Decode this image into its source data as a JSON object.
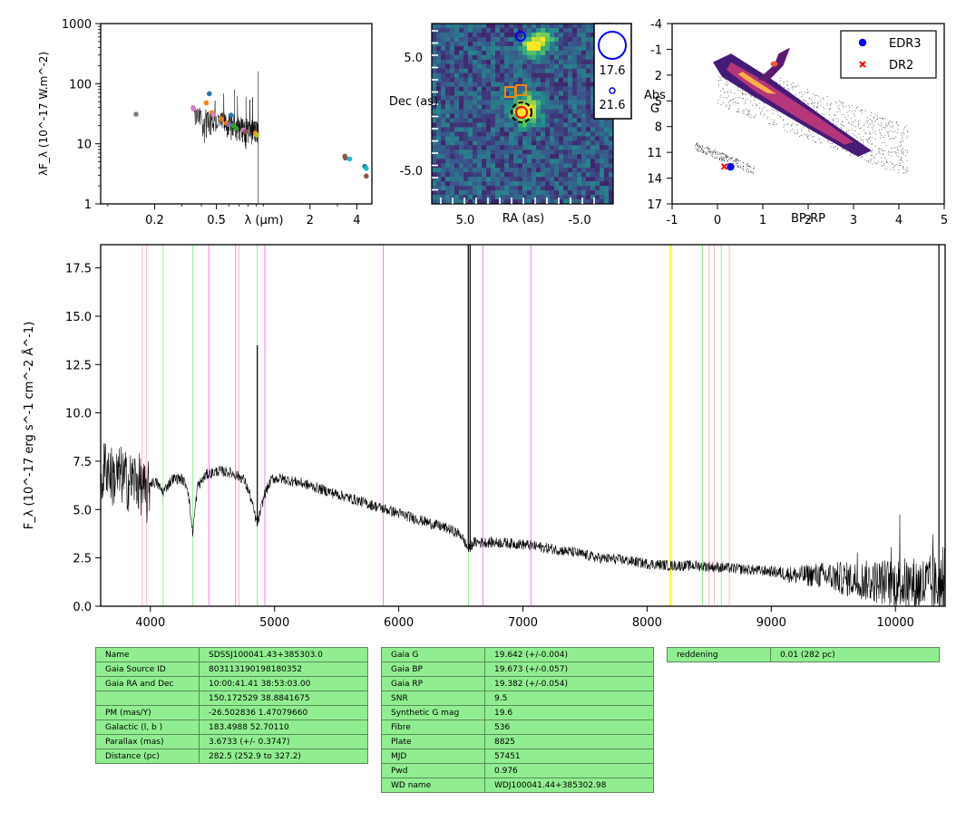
{
  "chart_data": [
    {
      "type": "scatter",
      "ylabel": "λF_λ (10^-17 W.m^-2)",
      "xlabel": "λ (μm)",
      "xscale": "log",
      "yscale": "log",
      "xlim": [
        0.09,
        5.0
      ],
      "ylim": [
        1,
        1000
      ],
      "x_ticks": [
        "0.2",
        "0.5",
        "2",
        "4"
      ],
      "y_ticks": [
        "1",
        "10",
        "100",
        "1000"
      ],
      "points": [
        {
          "x": 0.152,
          "y": 31,
          "color": "#7f7f7f"
        },
        {
          "x": 0.354,
          "y": 40,
          "color": "#e377c2"
        },
        {
          "x": 0.356,
          "y": 38,
          "color": "#e377c2"
        },
        {
          "x": 0.43,
          "y": 48,
          "color": "#ff7f0e"
        },
        {
          "x": 0.45,
          "y": 68,
          "color": "#1f77b4"
        },
        {
          "x": 0.467,
          "y": 33,
          "color": "#ff7f0e"
        },
        {
          "x": 0.48,
          "y": 31,
          "color": "#e377c2"
        },
        {
          "x": 0.54,
          "y": 26,
          "color": "#ff7f0e"
        },
        {
          "x": 0.58,
          "y": 22,
          "color": "#ff7f0e"
        },
        {
          "x": 0.6,
          "y": 21,
          "color": "#9467bd"
        },
        {
          "x": 0.62,
          "y": 30,
          "color": "#1f77b4"
        },
        {
          "x": 0.64,
          "y": 20,
          "color": "#2ca02c"
        },
        {
          "x": 0.67,
          "y": 18,
          "color": "#2ca02c"
        },
        {
          "x": 0.75,
          "y": 17,
          "color": "#e377c2"
        },
        {
          "x": 0.77,
          "y": 16,
          "color": "#8c564b"
        },
        {
          "x": 0.89,
          "y": 15,
          "color": "#ff7f0e"
        },
        {
          "x": 0.91,
          "y": 14,
          "color": "#bcbd22"
        },
        {
          "x": 3.35,
          "y": 6.2,
          "color": "#8c564b"
        },
        {
          "x": 3.38,
          "y": 5.8,
          "color": "#8c564b"
        },
        {
          "x": 3.6,
          "y": 5.6,
          "color": "#17becf"
        },
        {
          "x": 4.5,
          "y": 4.2,
          "color": "#1f77b4"
        },
        {
          "x": 4.6,
          "y": 3.9,
          "color": "#17becf"
        },
        {
          "x": 4.6,
          "y": 2.9,
          "color": "#8c564b"
        }
      ]
    },
    {
      "type": "heatmap",
      "xlabel": "RA (as)",
      "ylabel": "Dec (as)",
      "x_ticks": [
        "5.0",
        "-5.0"
      ],
      "y_ticks": [
        "5.0",
        "-5.0"
      ],
      "xlim": [
        8,
        -8
      ],
      "ylim": [
        -8,
        8
      ],
      "legend_labels": [
        "17.6",
        "21.6"
      ]
    },
    {
      "type": "scatter",
      "xlabel": "BP-RP",
      "ylabel": "Abs G",
      "xlim": [
        -1,
        5
      ],
      "ylim": [
        17,
        -4
      ],
      "x_ticks": [
        "-1",
        "0",
        "1",
        "2",
        "3",
        "4",
        "5"
      ],
      "y_ticks": [
        "-4",
        "-1",
        "2",
        "5",
        "8",
        "11",
        "14",
        "17"
      ],
      "legend": [
        "EDR3",
        "DR2"
      ],
      "legend_position": "top-right",
      "series": [
        {
          "name": "EDR3",
          "x": [
            0.29
          ],
          "y": [
            12.69
          ],
          "color": "#0000ff"
        },
        {
          "name": "DR2",
          "x": [
            0.15
          ],
          "y": [
            12.65
          ],
          "color": "#ff0000"
        }
      ]
    },
    {
      "type": "line",
      "ylabel": "F_λ (10^-17 erg s^-1 cm^-2 Å^-1)",
      "xlim": [
        3600,
        10400
      ],
      "ylim": [
        0,
        18.7
      ],
      "x_ticks": [
        "4000",
        "5000",
        "6000",
        "7000",
        "8000",
        "9000",
        "10000"
      ],
      "y_ticks": [
        "0.0",
        "2.5",
        "5.0",
        "7.5",
        "10.0",
        "12.5",
        "15.0",
        "17.5"
      ],
      "spectrum_anchors": [
        [
          3600,
          6.3
        ],
        [
          3640,
          7.4
        ],
        [
          3700,
          6.6
        ],
        [
          3760,
          6.8
        ],
        [
          3820,
          6.4
        ],
        [
          3880,
          6.6
        ],
        [
          3940,
          6.1
        ],
        [
          3970,
          5.6
        ],
        [
          4000,
          6.4
        ],
        [
          4050,
          6.4
        ],
        [
          4100,
          5.9
        ],
        [
          4180,
          6.6
        ],
        [
          4250,
          6.6
        ],
        [
          4300,
          6.2
        ],
        [
          4340,
          3.8
        ],
        [
          4380,
          6.2
        ],
        [
          4450,
          6.8
        ],
        [
          4550,
          7.0
        ],
        [
          4650,
          6.9
        ],
        [
          4750,
          6.6
        ],
        [
          4800,
          5.8
        ],
        [
          4861,
          4.2
        ],
        [
          4920,
          5.8
        ],
        [
          4980,
          6.6
        ],
        [
          5050,
          6.6
        ],
        [
          5200,
          6.4
        ],
        [
          5400,
          6.0
        ],
        [
          5600,
          5.6
        ],
        [
          5800,
          5.2
        ],
        [
          6000,
          4.8
        ],
        [
          6200,
          4.4
        ],
        [
          6400,
          4.0
        ],
        [
          6500,
          3.7
        ],
        [
          6540,
          3.2
        ],
        [
          6563,
          2.9
        ],
        [
          6600,
          3.3
        ],
        [
          6800,
          3.3
        ],
        [
          7000,
          3.2
        ],
        [
          7200,
          3.0
        ],
        [
          7400,
          2.8
        ],
        [
          7600,
          2.5
        ],
        [
          7800,
          2.4
        ],
        [
          8000,
          2.2
        ],
        [
          8200,
          2.1
        ],
        [
          8400,
          2.1
        ],
        [
          8600,
          2.0
        ],
        [
          8800,
          1.9
        ],
        [
          9000,
          1.8
        ],
        [
          9200,
          1.6
        ],
        [
          9400,
          1.6
        ],
        [
          9600,
          1.4
        ],
        [
          9800,
          1.3
        ],
        [
          10000,
          1.2
        ],
        [
          10200,
          1.1
        ],
        [
          10400,
          1.0
        ]
      ],
      "emission_spikes": [
        {
          "x": 4861,
          "y": 13.5
        },
        {
          "x": 6560,
          "y": 18.7
        },
        {
          "x": 6575,
          "y": 18.7
        },
        {
          "x": 10350,
          "y": 18.7
        }
      ],
      "reference_lines": [
        {
          "x": 3935,
          "color": "#ffb6c1"
        },
        {
          "x": 3970,
          "color": "#ffb6c1"
        },
        {
          "x": 4102,
          "color": "#90ee90"
        },
        {
          "x": 4340,
          "color": "#90ee90"
        },
        {
          "x": 4471,
          "color": "#ee82ee"
        },
        {
          "x": 4686,
          "color": "#ee82ee"
        },
        {
          "x": 4713,
          "color": "#ffb6c1"
        },
        {
          "x": 4861,
          "color": "#90ee90"
        },
        {
          "x": 4922,
          "color": "#ee82ee"
        },
        {
          "x": 5876,
          "color": "#ee82ee"
        },
        {
          "x": 6563,
          "color": "#90ee90"
        },
        {
          "x": 6678,
          "color": "#ee82ee"
        },
        {
          "x": 7065,
          "color": "#ee82ee"
        },
        {
          "x": 8190,
          "color": "#ffff00"
        },
        {
          "x": 8446,
          "color": "#90ee90"
        },
        {
          "x": 8498,
          "color": "#ffb6c1"
        },
        {
          "x": 8542,
          "color": "#ffb6c1"
        },
        {
          "x": 8598,
          "color": "#90ee90"
        },
        {
          "x": 8662,
          "color": "#ffb6c1"
        }
      ]
    }
  ],
  "tables": {
    "left": [
      [
        "Name",
        "SDSSJ100041.43+385303.0"
      ],
      [
        "Gaia Source ID",
        "803113190198180352"
      ],
      [
        "Gaia RA and Dec",
        "10:00:41.41    38:53:03.00"
      ],
      [
        "",
        "150.172529    38.8841675"
      ],
      [
        "PM (mas/Y)",
        "-26.502836    1.47079660"
      ],
      [
        "Galactic (l, b )",
        "183.4988    52.70110"
      ],
      [
        "Parallax (mas)",
        "3.6733 (+/- 0.3747)"
      ],
      [
        "Distance (pc)",
        "282.5 (252.9 to 327.2)"
      ]
    ],
    "middle": [
      [
        "Gaia G",
        "19.642 (+/-0.004)"
      ],
      [
        "Gaia BP",
        "19.673 (+/-0.057)"
      ],
      [
        "Gaia RP",
        "19.382 (+/-0.054)"
      ],
      [
        "SNR",
        "9.5"
      ],
      [
        "Synthetic G mag",
        "19.6"
      ],
      [
        "Fibre",
        "536"
      ],
      [
        "Plate",
        "8825"
      ],
      [
        "MJD",
        "57451"
      ],
      [
        "Pwd",
        "0.976"
      ],
      [
        "WD name",
        "WDJ100041.44+385302.98"
      ]
    ],
    "right": [
      [
        "reddening",
        "0.01 (282 pc)"
      ]
    ]
  }
}
